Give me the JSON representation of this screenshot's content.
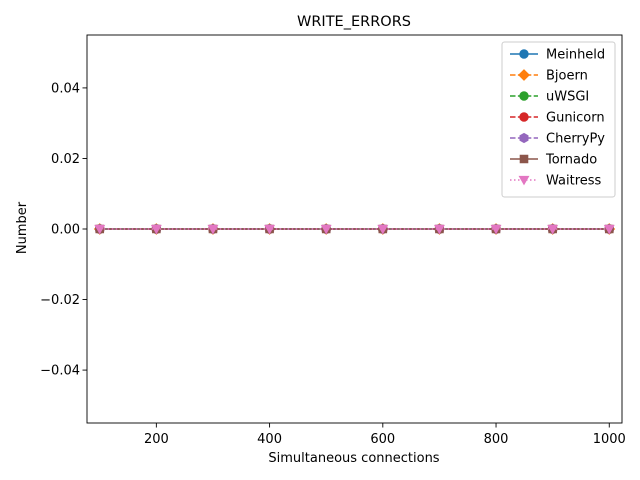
{
  "chart_data": {
    "type": "line",
    "title": "WRITE_ERRORS",
    "xlabel": "Simultaneous connections",
    "ylabel": "Number",
    "xlim": [
      77.5,
      1022.5
    ],
    "ylim": [
      -0.055,
      0.055
    ],
    "xticks": [
      200,
      400,
      600,
      800,
      1000
    ],
    "xtick_labels": [
      "200",
      "400",
      "600",
      "800",
      "1000"
    ],
    "yticks": [
      -0.04,
      -0.02,
      0.0,
      0.02,
      0.04
    ],
    "ytick_labels": [
      "−0.04",
      "−0.02",
      "0.00",
      "0.02",
      "0.04"
    ],
    "x": [
      100,
      200,
      300,
      400,
      500,
      600,
      700,
      800,
      900,
      1000
    ],
    "legend_position": "top-right",
    "grid": false,
    "series": [
      {
        "name": "Meinheld",
        "color": "#1f77b4",
        "marker": "circle",
        "linestyle": "solid",
        "values": [
          0,
          0,
          0,
          0,
          0,
          0,
          0,
          0,
          0,
          0
        ]
      },
      {
        "name": "Bjoern",
        "color": "#ff7f0e",
        "marker": "diamond",
        "linestyle": "dashed",
        "values": [
          0,
          0,
          0,
          0,
          0,
          0,
          0,
          0,
          0,
          0
        ]
      },
      {
        "name": "uWSGI",
        "color": "#2ca02c",
        "marker": "circle",
        "linestyle": "dashed",
        "values": [
          0,
          0,
          0,
          0,
          0,
          0,
          0,
          0,
          0,
          0
        ]
      },
      {
        "name": "Gunicorn",
        "color": "#d62728",
        "marker": "circle",
        "linestyle": "dashed",
        "values": [
          0,
          0,
          0,
          0,
          0,
          0,
          0,
          0,
          0,
          0
        ]
      },
      {
        "name": "CherryPy",
        "color": "#9467bd",
        "marker": "hexagon",
        "linestyle": "dashed",
        "values": [
          0,
          0,
          0,
          0,
          0,
          0,
          0,
          0,
          0,
          0
        ]
      },
      {
        "name": "Tornado",
        "color": "#8c564b",
        "marker": "square",
        "linestyle": "solid",
        "values": [
          0,
          0,
          0,
          0,
          0,
          0,
          0,
          0,
          0,
          0
        ]
      },
      {
        "name": "Waitress",
        "color": "#e377c2",
        "marker": "triangle-down",
        "linestyle": "dotted",
        "values": [
          0,
          0,
          0,
          0,
          0,
          0,
          0,
          0,
          0,
          0
        ]
      }
    ]
  }
}
